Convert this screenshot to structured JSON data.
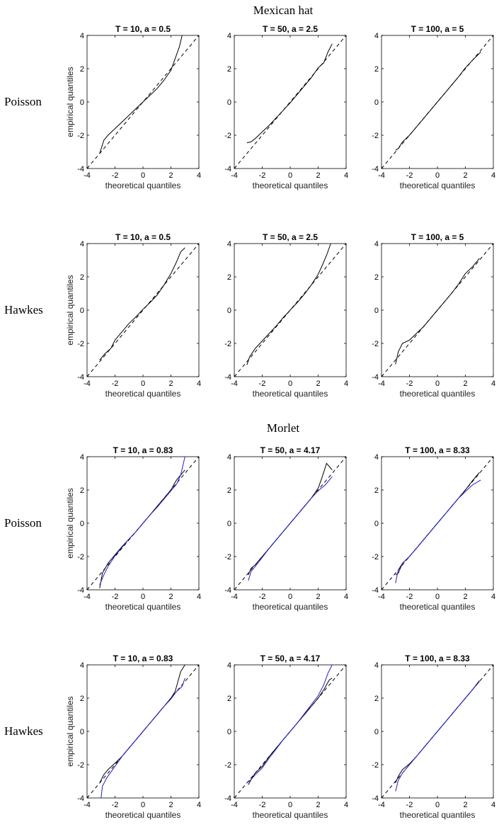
{
  "sections": [
    {
      "title": "Mexican hat",
      "rows": [
        {
          "label": "Poisson",
          "panels": [
            {
              "title": "T = 10, a = 0.5",
              "curves": [
                {
                  "color": "#000000",
                  "x": [
                    -3.1,
                    -2.8,
                    -2.5,
                    -2,
                    -1.5,
                    -1,
                    -0.5,
                    0,
                    0.5,
                    1,
                    1.5,
                    2,
                    2.3,
                    2.6,
                    2.8
                  ],
                  "y": [
                    -3.1,
                    -2.3,
                    -2.0,
                    -1.6,
                    -1.2,
                    -0.8,
                    -0.4,
                    0.0,
                    0.4,
                    0.8,
                    1.3,
                    1.9,
                    2.6,
                    3.3,
                    4.0
                  ]
                }
              ]
            },
            {
              "title": "T = 50, a = 2.5",
              "curves": [
                {
                  "color": "#000000",
                  "x": [
                    -3.1,
                    -2.8,
                    -2.5,
                    -2,
                    -1.5,
                    -1,
                    -0.5,
                    0,
                    0.5,
                    1,
                    1.5,
                    2,
                    2.4,
                    2.7,
                    3.0
                  ],
                  "y": [
                    -2.45,
                    -2.4,
                    -2.2,
                    -1.8,
                    -1.4,
                    -0.95,
                    -0.5,
                    -0.05,
                    0.45,
                    0.95,
                    1.45,
                    2.05,
                    2.35,
                    3.0,
                    3.5
                  ]
                }
              ]
            },
            {
              "title": "T = 100, a = 5",
              "curves": [
                {
                  "color": "#000000",
                  "x": [
                    -3.0,
                    -2.8,
                    -2.5,
                    -2,
                    -1.5,
                    -1,
                    -0.5,
                    0,
                    0.5,
                    1,
                    1.5,
                    2,
                    2.5,
                    3.1
                  ],
                  "y": [
                    -2.9,
                    -2.8,
                    -2.4,
                    -2.0,
                    -1.5,
                    -1.0,
                    -0.5,
                    0.0,
                    0.5,
                    1.0,
                    1.5,
                    2.05,
                    2.5,
                    3.0
                  ]
                }
              ]
            }
          ]
        },
        {
          "label": "Hawkes",
          "panels": [
            {
              "title": "T = 10, a = 0.5",
              "curves": [
                {
                  "color": "#000000",
                  "x": [
                    -3.1,
                    -2.7,
                    -2.3,
                    -2,
                    -1.5,
                    -1,
                    -0.5,
                    0,
                    0.5,
                    1,
                    1.5,
                    2,
                    2.4,
                    2.7,
                    3.0
                  ],
                  "y": [
                    -3.0,
                    -2.6,
                    -2.3,
                    -1.8,
                    -1.3,
                    -0.8,
                    -0.4,
                    0.05,
                    0.45,
                    0.9,
                    1.5,
                    2.2,
                    2.9,
                    3.5,
                    3.75
                  ]
                }
              ]
            },
            {
              "title": "T = 50, a = 2.5",
              "curves": [
                {
                  "color": "#000000",
                  "x": [
                    -3.1,
                    -2.9,
                    -2.5,
                    -2,
                    -1.5,
                    -1,
                    -0.5,
                    0,
                    0.5,
                    1,
                    1.5,
                    2,
                    2.3,
                    2.6,
                    2.9
                  ],
                  "y": [
                    -3.3,
                    -2.8,
                    -2.3,
                    -1.85,
                    -1.4,
                    -0.95,
                    -0.45,
                    0.0,
                    0.45,
                    0.95,
                    1.5,
                    2.15,
                    2.7,
                    3.3,
                    4.0
                  ]
                }
              ]
            },
            {
              "title": "T = 100, a = 5",
              "curves": [
                {
                  "color": "#000000",
                  "x": [
                    -3.0,
                    -2.8,
                    -2.5,
                    -2,
                    -1.5,
                    -1,
                    -0.5,
                    0,
                    0.5,
                    1,
                    1.5,
                    2,
                    2.5,
                    3.0
                  ],
                  "y": [
                    -3.25,
                    -2.5,
                    -2.0,
                    -1.8,
                    -1.4,
                    -1.0,
                    -0.5,
                    0.0,
                    0.5,
                    1.0,
                    1.55,
                    2.2,
                    2.6,
                    3.1
                  ]
                }
              ]
            }
          ]
        }
      ]
    },
    {
      "title": "Morlet",
      "rows": [
        {
          "label": "Poisson",
          "panels": [
            {
              "title": "T = 10, a = 0.83",
              "curves": [
                {
                  "color": "#000000",
                  "x": [
                    -3.1,
                    -2.9,
                    -2.5,
                    -2,
                    -1.5,
                    -1,
                    -0.5,
                    0,
                    0.5,
                    1,
                    1.5,
                    2,
                    2.4,
                    2.7,
                    3.0
                  ],
                  "y": [
                    -3.9,
                    -3.0,
                    -2.4,
                    -1.9,
                    -1.4,
                    -0.95,
                    -0.5,
                    0.0,
                    0.5,
                    1.0,
                    1.5,
                    2.0,
                    2.6,
                    2.9,
                    3.2
                  ]
                },
                {
                  "color": "#1f1fcc",
                  "x": [
                    -3.1,
                    -2.8,
                    -2.5,
                    -2,
                    -1.5,
                    -1,
                    -0.5,
                    0,
                    0.5,
                    1,
                    1.5,
                    2,
                    2.4,
                    2.7,
                    3.0
                  ],
                  "y": [
                    -3.7,
                    -3.1,
                    -2.6,
                    -1.95,
                    -1.45,
                    -0.95,
                    -0.5,
                    0.0,
                    0.5,
                    0.95,
                    1.45,
                    1.95,
                    2.35,
                    2.9,
                    4.0
                  ]
                }
              ]
            },
            {
              "title": "T = 50, a = 4.17",
              "curves": [
                {
                  "color": "#000000",
                  "x": [
                    -3.0,
                    -2.8,
                    -2.5,
                    -2,
                    -1.5,
                    -1,
                    -0.5,
                    0,
                    0.5,
                    1,
                    1.5,
                    2,
                    2.3,
                    2.6,
                    3.0
                  ],
                  "y": [
                    -3.1,
                    -2.7,
                    -2.5,
                    -2.0,
                    -1.5,
                    -1.0,
                    -0.5,
                    0.0,
                    0.5,
                    1.0,
                    1.5,
                    2.1,
                    2.8,
                    3.6,
                    3.2
                  ]
                },
                {
                  "color": "#1f1fcc",
                  "x": [
                    -3.0,
                    -2.8,
                    -2.5,
                    -2,
                    -1.5,
                    -1,
                    -0.5,
                    0,
                    0.5,
                    1,
                    1.5,
                    2,
                    2.5,
                    3.0
                  ],
                  "y": [
                    -3.45,
                    -2.9,
                    -2.6,
                    -2.05,
                    -1.5,
                    -1.0,
                    -0.5,
                    0.0,
                    0.5,
                    1.0,
                    1.5,
                    1.95,
                    2.3,
                    2.8
                  ]
                }
              ]
            },
            {
              "title": "T = 100, a = 8.33",
              "curves": [
                {
                  "color": "#000000",
                  "x": [
                    -3.0,
                    -2.8,
                    -2.5,
                    -2,
                    -1.5,
                    -1,
                    -0.5,
                    0,
                    0.5,
                    1,
                    1.5,
                    2,
                    2.5,
                    3.0
                  ],
                  "y": [
                    -3.1,
                    -3.0,
                    -2.4,
                    -2.0,
                    -1.5,
                    -1.0,
                    -0.5,
                    0.0,
                    0.5,
                    1.0,
                    1.5,
                    2.0,
                    2.55,
                    3.05
                  ]
                },
                {
                  "color": "#1f1fcc",
                  "x": [
                    -3.0,
                    -2.8,
                    -2.5,
                    -2,
                    -1.5,
                    -1,
                    -0.5,
                    0,
                    0.5,
                    1,
                    1.5,
                    2,
                    2.5,
                    3.1
                  ],
                  "y": [
                    -3.6,
                    -2.8,
                    -2.4,
                    -2.0,
                    -1.5,
                    -1.0,
                    -0.5,
                    0.0,
                    0.5,
                    1.0,
                    1.5,
                    1.9,
                    2.3,
                    2.6
                  ]
                }
              ]
            }
          ]
        },
        {
          "label": "Hawkes",
          "panels": [
            {
              "title": "T = 10, a = 0.83",
              "curves": [
                {
                  "color": "#000000",
                  "x": [
                    -3.1,
                    -2.8,
                    -2.5,
                    -2,
                    -1.5,
                    -1,
                    -0.5,
                    0,
                    0.5,
                    1,
                    1.5,
                    2,
                    2.3,
                    2.5,
                    2.7,
                    3.0
                  ],
                  "y": [
                    -3.1,
                    -2.6,
                    -2.3,
                    -1.9,
                    -1.5,
                    -1.0,
                    -0.5,
                    0.0,
                    0.5,
                    1.0,
                    1.5,
                    2.0,
                    2.4,
                    3.0,
                    3.6,
                    4.0
                  ]
                },
                {
                  "color": "#1f1fcc",
                  "x": [
                    -3.0,
                    -2.9,
                    -2.6,
                    -2,
                    -1.5,
                    -1,
                    -0.5,
                    0,
                    0.5,
                    1,
                    1.5,
                    2,
                    2.4,
                    2.8,
                    3.0
                  ],
                  "y": [
                    -4.0,
                    -3.3,
                    -2.8,
                    -2.1,
                    -1.5,
                    -1.0,
                    -0.5,
                    0.0,
                    0.5,
                    1.0,
                    1.5,
                    1.95,
                    2.4,
                    2.7,
                    3.2
                  ]
                }
              ]
            },
            {
              "title": "T = 50, a = 4.17",
              "curves": [
                {
                  "color": "#000000",
                  "x": [
                    -3.0,
                    -2.8,
                    -2.5,
                    -2,
                    -1.5,
                    -1,
                    -0.5,
                    0,
                    0.5,
                    1,
                    1.5,
                    2,
                    2.4,
                    2.8,
                    3.0
                  ],
                  "y": [
                    -3.2,
                    -2.9,
                    -2.5,
                    -2.1,
                    -1.5,
                    -1.0,
                    -0.5,
                    0.0,
                    0.5,
                    1.0,
                    1.5,
                    2.0,
                    2.5,
                    3.1,
                    3.2
                  ]
                },
                {
                  "color": "#1f1fcc",
                  "x": [
                    -3.1,
                    -2.8,
                    -2.5,
                    -2,
                    -1.5,
                    -1,
                    -0.5,
                    0,
                    0.5,
                    1,
                    1.5,
                    2,
                    2.4,
                    2.7,
                    3.0
                  ],
                  "y": [
                    -3.1,
                    -2.9,
                    -2.6,
                    -2.2,
                    -1.6,
                    -1.05,
                    -0.5,
                    0.0,
                    0.5,
                    1.05,
                    1.6,
                    2.15,
                    2.8,
                    3.5,
                    4.0
                  ]
                }
              ]
            },
            {
              "title": "T = 100, a = 8.33",
              "curves": [
                {
                  "color": "#000000",
                  "x": [
                    -3.0,
                    -2.8,
                    -2.5,
                    -2,
                    -1.5,
                    -1,
                    -0.5,
                    0,
                    0.5,
                    1,
                    1.5,
                    2,
                    2.5,
                    3.0
                  ],
                  "y": [
                    -3.1,
                    -2.7,
                    -2.3,
                    -1.95,
                    -1.5,
                    -1.0,
                    -0.5,
                    0.0,
                    0.5,
                    1.0,
                    1.5,
                    2.0,
                    2.5,
                    3.05
                  ]
                },
                {
                  "color": "#1f1fcc",
                  "x": [
                    -3.0,
                    -2.8,
                    -2.5,
                    -2,
                    -1.5,
                    -1,
                    -0.5,
                    0,
                    0.5,
                    1,
                    1.5,
                    2,
                    2.5,
                    3.0
                  ],
                  "y": [
                    -3.6,
                    -2.95,
                    -2.5,
                    -2.0,
                    -1.5,
                    -1.0,
                    -0.5,
                    0.0,
                    0.5,
                    1.0,
                    1.5,
                    2.0,
                    2.5,
                    3.0
                  ]
                }
              ]
            }
          ]
        }
      ]
    }
  ],
  "chart_data": {
    "type": "line",
    "xlabel": "theoretical quantiles",
    "ylabel": "empirical quantiles",
    "xlim": [
      -4,
      4
    ],
    "ylim": [
      -4,
      4
    ],
    "xticks": [
      -4,
      -2,
      0,
      2,
      4
    ],
    "yticks": [
      -4,
      -2,
      0,
      2,
      4
    ],
    "reference_line": {
      "style": "dashed",
      "color": "#000000",
      "x": [
        -4,
        4
      ],
      "y": [
        -4,
        4
      ]
    },
    "grid": false
  }
}
